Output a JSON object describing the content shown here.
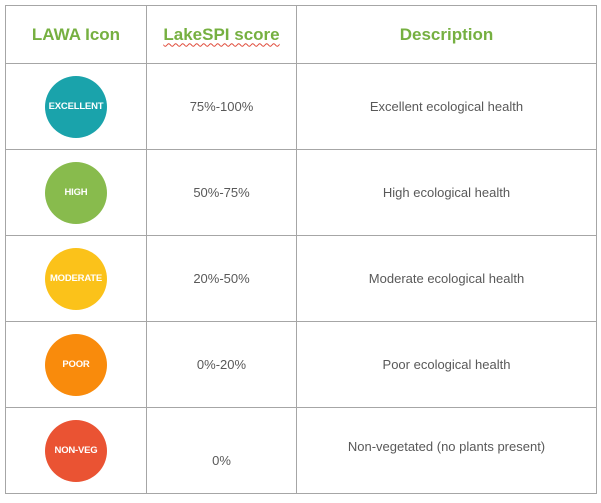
{
  "table": {
    "headers": {
      "icon": "LAWA Icon",
      "score": "LakeSPI score",
      "description": "Description"
    },
    "rows": [
      {
        "icon_label": "EXCELLENT",
        "icon_color": "#1aa3ab",
        "score": "75%-100%",
        "description": "Excellent ecological health"
      },
      {
        "icon_label": "HIGH",
        "icon_color": "#88bb4d",
        "score": "50%-75%",
        "description": "High ecological health"
      },
      {
        "icon_label": "MODERATE",
        "icon_color": "#fbc21a",
        "score": "20%-50%",
        "description": "Moderate ecological health"
      },
      {
        "icon_label": "POOR",
        "icon_color": "#f98b0c",
        "score": "0%-20%",
        "description": "Poor ecological health"
      },
      {
        "icon_label": "NON-VEG",
        "icon_color": "#ea5333",
        "score": "0%",
        "description": "Non-vegetated (no plants present)"
      }
    ]
  }
}
